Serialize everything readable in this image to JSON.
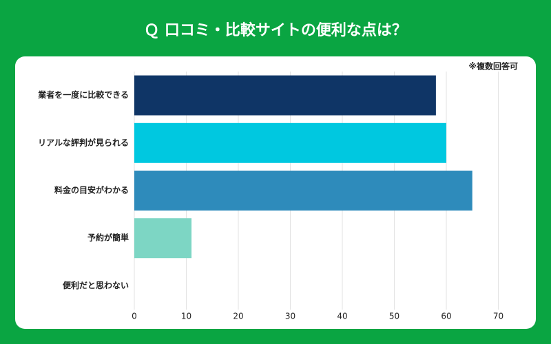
{
  "chart_data": {
    "type": "hbar",
    "title": "Ｑ 口コミ・比較サイトの便利な点は？",
    "annotation": "※複数回答可",
    "categories": [
      "業者を一度に比較できる",
      "リアルな評判が見られる",
      "料金の目安がわかる",
      "予約が簡単",
      "便利だと思わない"
    ],
    "values": [
      58,
      60,
      65,
      11,
      0
    ],
    "colors": [
      "#0f3566",
      "#00c8e0",
      "#2e8bbb",
      "#7dd6c4",
      "#7dd6c4"
    ],
    "xlim": [
      0,
      70
    ],
    "xticks": [
      0,
      10,
      20,
      30,
      40,
      50,
      60,
      70
    ],
    "grid": true
  }
}
